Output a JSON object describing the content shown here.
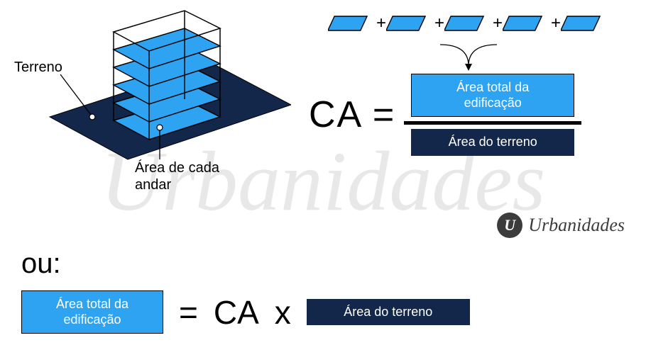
{
  "colors": {
    "blue": "#2ea3f2",
    "dark": "#13274b",
    "watermark": "#d9d9d9",
    "logo": "#3c3c3c",
    "black": "#000000",
    "white": "#ffffff"
  },
  "watermark_text": "Urbanidades",
  "building": {
    "label_terrain": "Terreno",
    "label_floor_area": "Área de cada\nandar",
    "floors": 5
  },
  "formula": {
    "ca_equals": "CA =",
    "numerator": "Área total da\nedificação",
    "denominator": "Área do terreno",
    "floor_count": 5,
    "plus": "+"
  },
  "logo": {
    "badge": "U",
    "text": "Urbanidades"
  },
  "bottom": {
    "ou": "ou:",
    "left_box": "Área total da\nedificação",
    "equals": "=",
    "ca": "CA",
    "times": "x",
    "right_box": "Área do terreno"
  }
}
